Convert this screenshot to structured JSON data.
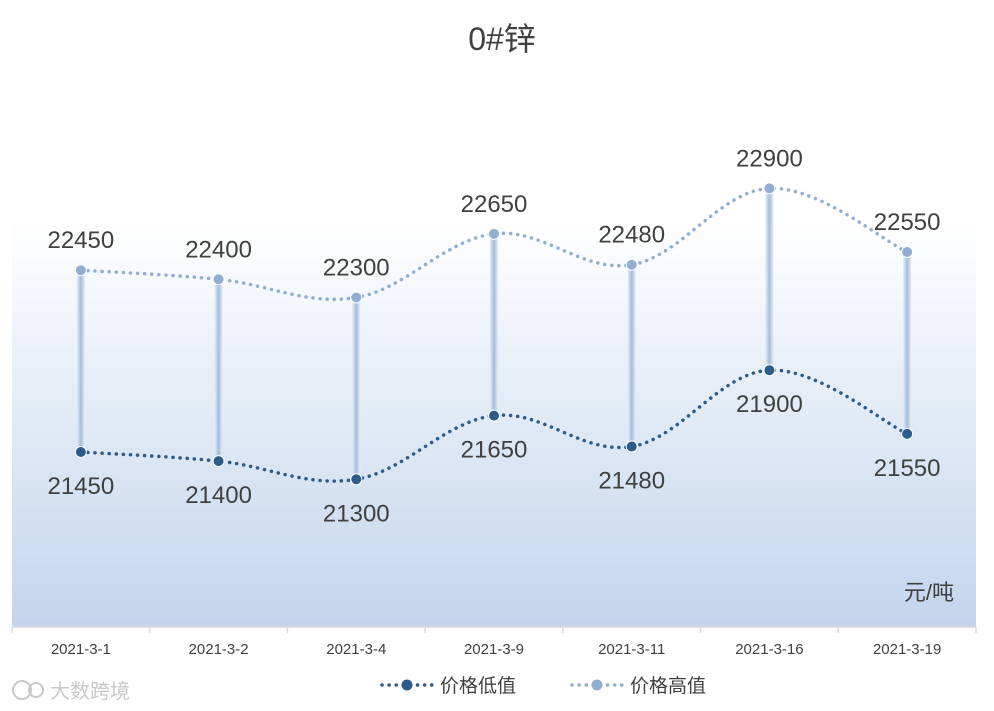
{
  "chart_data": {
    "type": "line",
    "title": "0#锌",
    "unit_label": "元/吨",
    "categories": [
      "2021-3-1",
      "2021-3-2",
      "2021-3-4",
      "2021-3-9",
      "2021-3-11",
      "2021-3-16",
      "2021-3-19"
    ],
    "series": [
      {
        "name": "价格低值",
        "values": [
          21450,
          21400,
          21300,
          21650,
          21480,
          21900,
          21550
        ],
        "color": "#2e5c8a"
      },
      {
        "name": "价格高值",
        "values": [
          22450,
          22400,
          22300,
          22650,
          22480,
          22900,
          22550
        ],
        "color": "#92aed3"
      }
    ],
    "legend_position": "bottom",
    "grid": false,
    "high_low_lines": true
  },
  "watermark": "大数跨境"
}
